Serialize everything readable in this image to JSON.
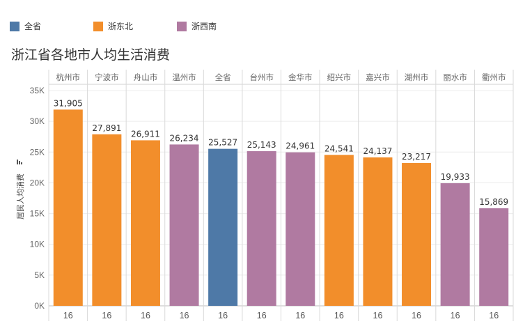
{
  "legend": [
    {
      "label": "全省",
      "color": "#4e79a7"
    },
    {
      "label": "浙东北",
      "color": "#f28e2b"
    },
    {
      "label": "浙西南",
      "color": "#b07aa1"
    }
  ],
  "chart_data": {
    "type": "bar",
    "title": "浙江省各地市人均生活消费",
    "ylabel": "居民人均消费",
    "xlabel": "",
    "ylim": [
      0,
      35000
    ],
    "yticks": [
      0,
      5000,
      10000,
      15000,
      20000,
      25000,
      30000,
      35000
    ],
    "ytick_labels": [
      "0K",
      "5K",
      "10K",
      "15K",
      "20K",
      "25K",
      "30K",
      "35K"
    ],
    "grid": true,
    "legend_position": "top-left",
    "categories": [
      "杭州市",
      "宁波市",
      "舟山市",
      "温州市",
      "全省",
      "台州市",
      "金华市",
      "绍兴市",
      "嘉兴市",
      "湖州市",
      "丽水市",
      "衢州市"
    ],
    "values": [
      31905,
      27891,
      26911,
      26234,
      25527,
      25143,
      24961,
      24541,
      24137,
      23217,
      19933,
      15869
    ],
    "value_labels": [
      "31,905",
      "27,891",
      "26,911",
      "26,234",
      "25,527",
      "25,143",
      "24,961",
      "24,541",
      "24,137",
      "23,217",
      "19,933",
      "15,869"
    ],
    "groups": [
      "浙东北",
      "浙东北",
      "浙东北",
      "浙西南",
      "全省",
      "浙西南",
      "浙西南",
      "浙东北",
      "浙东北",
      "浙东北",
      "浙西南",
      "浙西南"
    ],
    "bottom_labels": [
      "16",
      "16",
      "16",
      "16",
      "16",
      "16",
      "16",
      "16",
      "16",
      "16",
      "16",
      "16"
    ]
  }
}
